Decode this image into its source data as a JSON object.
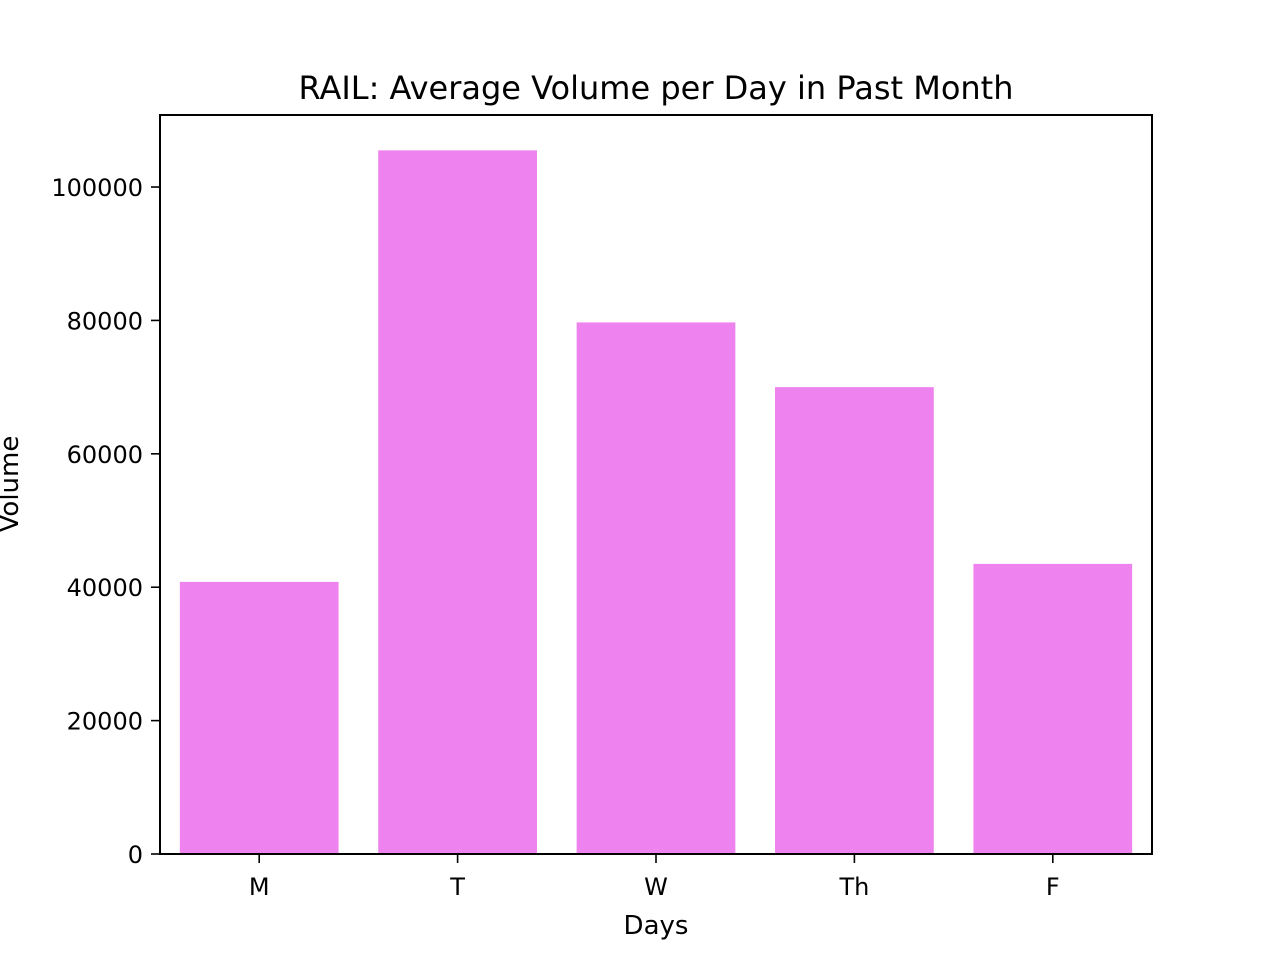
{
  "chart_data": {
    "type": "bar",
    "title": "RAIL: Average Volume per Day in Past Month",
    "xlabel": "Days",
    "ylabel": "Volume",
    "categories": [
      "M",
      "T",
      "W",
      "Th",
      "F"
    ],
    "values": [
      40800,
      105500,
      79700,
      70000,
      43500
    ],
    "ylim": [
      0,
      110800
    ],
    "yticks": [
      0,
      20000,
      40000,
      60000,
      80000,
      100000
    ],
    "bar_color": "#ee82ee",
    "grid": false,
    "legend": "none"
  }
}
